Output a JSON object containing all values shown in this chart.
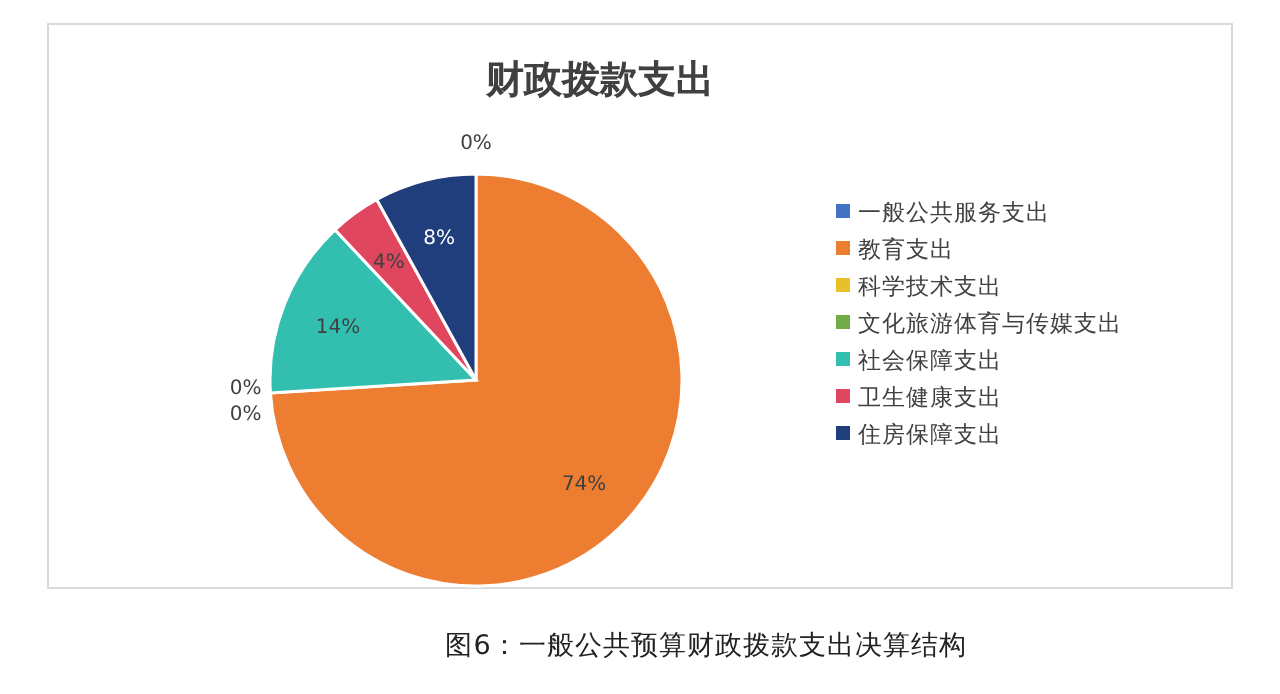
{
  "chart_data": {
    "type": "pie",
    "title": "财政拨款支出",
    "categories": [
      "一般公共服务支出",
      "教育支出",
      "科学技术支出",
      "文化旅游体育与传媒支出",
      "社会保障支出",
      "卫生健康支出",
      "住房保障支出"
    ],
    "values": [
      0,
      74,
      0,
      0,
      14,
      4,
      8
    ],
    "colors": [
      "#4472c4",
      "#ed7d31",
      "#e8c12a",
      "#70ad47",
      "#33bfb0",
      "#e0475e",
      "#203d7c"
    ],
    "value_labels": [
      "0%",
      "74%",
      "0%",
      "0%",
      "14%",
      "4%",
      "8%"
    ],
    "legend": "right",
    "annotations": [
      "图6：一般公共预算财政拨款支出决算结构"
    ]
  }
}
